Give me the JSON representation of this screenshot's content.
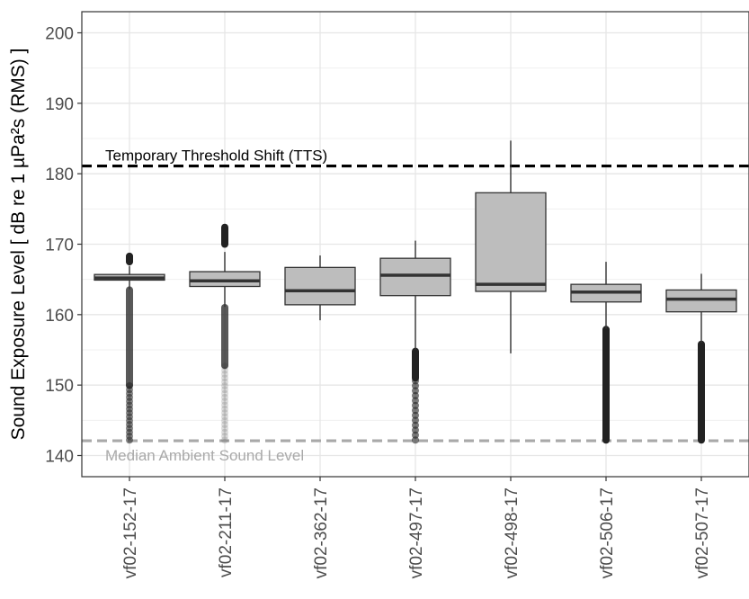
{
  "chart_data": {
    "type": "box",
    "title": "",
    "xlabel": "",
    "ylabel": "Sound Exposure Level [ dB re 1 µPa²s (RMS) ]",
    "ylim": [
      137,
      203
    ],
    "y_ticks": [
      140,
      150,
      160,
      170,
      180,
      190,
      200
    ],
    "grid": true,
    "categories": [
      "vf02-152-17",
      "vf02-211-17",
      "vf02-362-17",
      "vf02-497-17",
      "vf02-498-17",
      "vf02-506-17",
      "vf02-507-17"
    ],
    "boxes": [
      {
        "category": "vf02-152-17",
        "whisker_low": 163.6,
        "q1": 164.9,
        "median": 165.2,
        "q3": 165.7,
        "whisker_high": 166.9,
        "outliers_high": [
          167.5,
          168.3
        ],
        "outliers_low_range": [
          142.2,
          163.5
        ]
      },
      {
        "category": "vf02-211-17",
        "whisker_low": 161.1,
        "q1": 164.0,
        "median": 164.8,
        "q3": 166.1,
        "whisker_high": 168.9,
        "outliers_high": [
          170.0,
          172.4
        ],
        "outliers_low_range": [
          142.2,
          161.0
        ]
      },
      {
        "category": "vf02-362-17",
        "whisker_low": 159.2,
        "q1": 161.4,
        "median": 163.4,
        "q3": 166.7,
        "whisker_high": 168.4
      },
      {
        "category": "vf02-497-17",
        "whisker_low": 155.0,
        "q1": 162.7,
        "median": 165.6,
        "q3": 168.0,
        "whisker_high": 170.5,
        "outliers_low_range": [
          142.2,
          154.8
        ]
      },
      {
        "category": "vf02-498-17",
        "whisker_low": 154.5,
        "q1": 163.3,
        "median": 164.3,
        "q3": 177.3,
        "whisker_high": 184.7
      },
      {
        "category": "vf02-506-17",
        "whisker_low": 158.0,
        "q1": 161.8,
        "median": 163.2,
        "q3": 164.3,
        "whisker_high": 167.5,
        "outliers_low_range": [
          142.2,
          157.9
        ]
      },
      {
        "category": "vf02-507-17",
        "whisker_low": 156.0,
        "q1": 160.4,
        "median": 162.2,
        "q3": 163.5,
        "whisker_high": 165.8,
        "outliers_low_range": [
          142.2,
          155.8
        ]
      }
    ],
    "reference_lines": [
      {
        "label": "Temporary Threshold Shift (TTS)",
        "y": 181.1,
        "color": "#000000",
        "style": "dashed"
      },
      {
        "label": "Median Ambient Sound Level",
        "y": 142.1,
        "color": "#a9a9a9",
        "style": "dashed"
      }
    ],
    "colors": {
      "box_fill": "#bdbdbd",
      "box_stroke": "#333333",
      "grid": "#e6e6e6",
      "outlier": "#222222"
    }
  }
}
